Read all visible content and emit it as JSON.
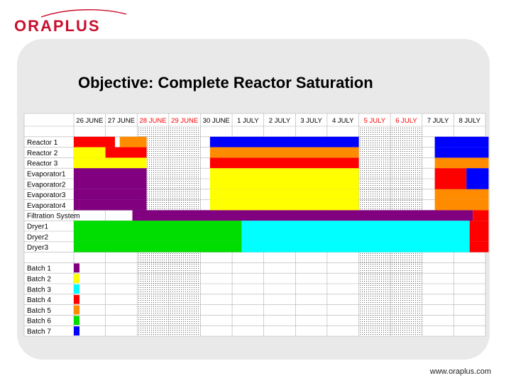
{
  "logo": {
    "text": "ORAPLUS",
    "color": "#c8102e"
  },
  "slide": {
    "title": "Objective: Complete Reactor Saturation",
    "footer": "www.oraplus.com"
  },
  "chart_data": {
    "type": "gantt",
    "columns": [
      {
        "label": "26 JUNE",
        "weekend": false
      },
      {
        "label": "27 JUNE",
        "weekend": false
      },
      {
        "label": "28 JUNE",
        "weekend": true
      },
      {
        "label": "29 JUNE",
        "weekend": true
      },
      {
        "label": "30 JUNE",
        "weekend": false
      },
      {
        "label": "1 JULY",
        "weekend": false
      },
      {
        "label": "2 JULY",
        "weekend": false
      },
      {
        "label": "3 JULY",
        "weekend": false
      },
      {
        "label": "4 JULY",
        "weekend": false
      },
      {
        "label": "5 JULY",
        "weekend": true
      },
      {
        "label": "6 JULY",
        "weekend": true
      },
      {
        "label": "7 JULY",
        "weekend": false
      },
      {
        "label": "8 JULY",
        "weekend": false
      }
    ],
    "colors": {
      "batch1": "#800080",
      "batch2": "#ffff00",
      "batch3": "#00ffff",
      "batch4": "#ff0000",
      "batch5": "#ff8c00",
      "batch6": "#00dd00",
      "batch7": "#0000ff",
      "weekend_label": "#ff0000"
    },
    "resources": [
      {
        "label": "Reactor 1",
        "bars": [
          {
            "start": 0,
            "end": 1.3,
            "color": "#ff0000"
          },
          {
            "start": 1.45,
            "end": 2.3,
            "color": "#ff8c00"
          },
          {
            "start": 4.3,
            "end": 9.0,
            "color": "#0000ff"
          },
          {
            "start": 11.4,
            "end": 13.1,
            "color": "#0000ff"
          }
        ]
      },
      {
        "label": "Reactor 2",
        "bars": [
          {
            "start": 0,
            "end": 1.0,
            "color": "#ffff00"
          },
          {
            "start": 1.0,
            "end": 2.3,
            "color": "#ff0000"
          },
          {
            "start": 4.3,
            "end": 9.0,
            "color": "#ff8c00"
          },
          {
            "start": 11.4,
            "end": 13.1,
            "color": "#0000ff"
          }
        ]
      },
      {
        "label": "Reactor 3",
        "bars": [
          {
            "start": 0,
            "end": 2.3,
            "color": "#ffff00"
          },
          {
            "start": 4.3,
            "end": 9.0,
            "color": "#ff0000"
          },
          {
            "start": 11.4,
            "end": 13.1,
            "color": "#ff8c00"
          }
        ]
      },
      {
        "label": "Evaporator1",
        "bars": [
          {
            "start": 0,
            "end": 2.3,
            "color": "#800080"
          },
          {
            "start": 4.3,
            "end": 9.0,
            "color": "#ffff00"
          },
          {
            "start": 11.4,
            "end": 12.4,
            "color": "#ff0000"
          },
          {
            "start": 12.4,
            "end": 13.1,
            "color": "#0000ff"
          }
        ]
      },
      {
        "label": "Evaporator2",
        "bars": [
          {
            "start": 0,
            "end": 2.3,
            "color": "#800080"
          },
          {
            "start": 4.3,
            "end": 9.0,
            "color": "#ffff00"
          },
          {
            "start": 11.4,
            "end": 12.4,
            "color": "#ff0000"
          },
          {
            "start": 12.4,
            "end": 13.1,
            "color": "#0000ff"
          }
        ]
      },
      {
        "label": "Evaporator3",
        "bars": [
          {
            "start": 0,
            "end": 2.3,
            "color": "#800080"
          },
          {
            "start": 4.3,
            "end": 9.0,
            "color": "#ffff00"
          },
          {
            "start": 11.4,
            "end": 13.1,
            "color": "#ff8c00"
          }
        ]
      },
      {
        "label": "Evaporator4",
        "bars": [
          {
            "start": 0,
            "end": 2.3,
            "color": "#800080"
          },
          {
            "start": 4.3,
            "end": 9.0,
            "color": "#ffff00"
          },
          {
            "start": 11.4,
            "end": 13.1,
            "color": "#ff8c00"
          }
        ]
      },
      {
        "label": "Filtration System",
        "bars": [
          {
            "start": 1.85,
            "end": 12.6,
            "color": "#800080"
          },
          {
            "start": 12.6,
            "end": 13.1,
            "color": "#ff0000"
          }
        ]
      },
      {
        "label": "Dryer1",
        "bars": [
          {
            "start": 0,
            "end": 5.3,
            "color": "#00dd00"
          },
          {
            "start": 5.3,
            "end": 12.5,
            "color": "#00ffff"
          },
          {
            "start": 12.5,
            "end": 13.1,
            "color": "#ff0000"
          }
        ]
      },
      {
        "label": "Dryer2",
        "bars": [
          {
            "start": 0,
            "end": 5.3,
            "color": "#00dd00"
          },
          {
            "start": 5.3,
            "end": 12.5,
            "color": "#00ffff"
          },
          {
            "start": 12.5,
            "end": 13.1,
            "color": "#ff0000"
          }
        ]
      },
      {
        "label": "Dryer3",
        "bars": [
          {
            "start": 0,
            "end": 5.3,
            "color": "#00dd00"
          },
          {
            "start": 5.3,
            "end": 12.5,
            "color": "#00ffff"
          },
          {
            "start": 12.5,
            "end": 13.1,
            "color": "#ff0000"
          }
        ]
      }
    ],
    "legend": [
      {
        "label": "Batch 1",
        "color": "#800080"
      },
      {
        "label": "Batch 2",
        "color": "#ffff00"
      },
      {
        "label": "Batch 3",
        "color": "#00ffff"
      },
      {
        "label": "Batch 4",
        "color": "#ff0000"
      },
      {
        "label": "Batch 5",
        "color": "#ff8c00"
      },
      {
        "label": "Batch 6",
        "color": "#00dd00"
      },
      {
        "label": "Batch 7",
        "color": "#0000ff"
      }
    ]
  }
}
